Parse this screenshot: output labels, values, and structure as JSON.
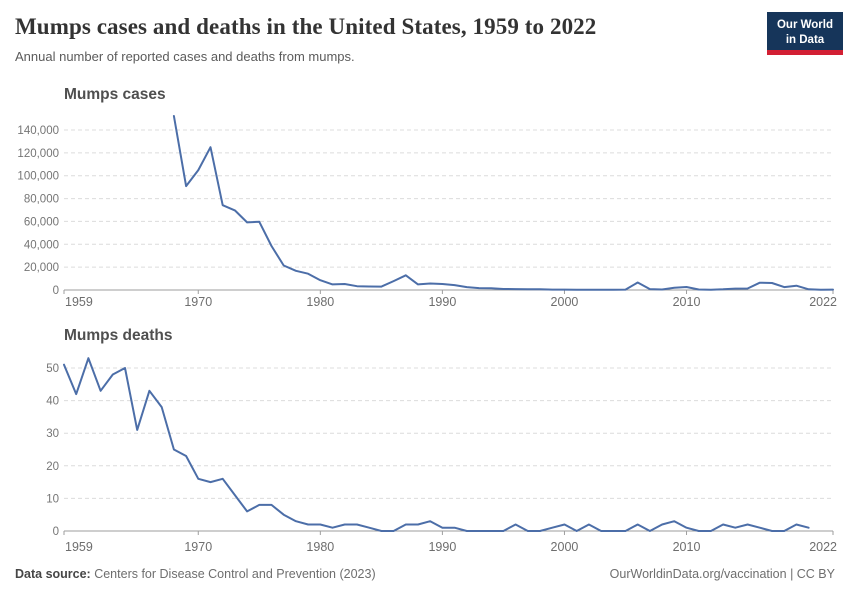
{
  "header": {
    "title": "Mumps cases and deaths in the United States, 1959 to 2022",
    "subtitle": "Annual number of reported cases and deaths from mumps.",
    "logo": {
      "line1": "Our World",
      "line2": "in Data"
    }
  },
  "footer": {
    "source_label": "Data source:",
    "source_value": " Centers for Disease Control and Prevention (2023)",
    "credit": "OurWorldinData.org/vaccination | CC BY"
  },
  "colors": {
    "line": "#4C6EA8",
    "logo_bg": "#16355a",
    "logo_red": "#d21f33",
    "grid": "#dcdcdc",
    "axis": "#9e9e9e"
  },
  "chart_data": [
    {
      "type": "line",
      "title": "Mumps cases",
      "xlabel": "",
      "ylabel": "",
      "grid": "dashed horizontal",
      "legend": "none",
      "xlim": [
        1959,
        2022
      ],
      "ylim": [
        0,
        152209
      ],
      "xticks": [
        1959,
        1970,
        1980,
        1990,
        2000,
        2010,
        2022
      ],
      "xtick_labels": [
        "1959",
        "1970",
        "1980",
        "1990",
        "2000",
        "2010",
        "2022"
      ],
      "yticks": [
        0,
        20000,
        40000,
        60000,
        80000,
        100000,
        120000,
        140000
      ],
      "ytick_labels": [
        "0",
        "20,000",
        "40,000",
        "60,000",
        "80,000",
        "100,000",
        "120,000",
        "140,000"
      ],
      "series": [
        {
          "name": "Mumps cases",
          "start_year": 1968,
          "values": [
            152209,
            90918,
            104953,
            124939,
            74215,
            69612,
            59128,
            59647,
            38492,
            21436,
            16817,
            14225,
            8576,
            4941,
            5270,
            3355,
            3021,
            2982,
            7790,
            12848,
            4866,
            5712,
            5292,
            4264,
            2572,
            1692,
            1537,
            906,
            751,
            683,
            666,
            387,
            338,
            266,
            270,
            231,
            258,
            314,
            6584,
            800,
            454,
            1991,
            2612,
            404,
            229,
            584,
            1223,
            1329,
            6369,
            6109,
            2515,
            3780,
            616,
            139,
            322
          ]
        }
      ]
    },
    {
      "type": "line",
      "title": "Mumps deaths",
      "xlabel": "",
      "ylabel": "",
      "grid": "dashed horizontal",
      "legend": "none",
      "xlim": [
        1959,
        2022
      ],
      "ylim": [
        0,
        53
      ],
      "xticks": [
        1959,
        1970,
        1980,
        1990,
        2000,
        2010,
        2022
      ],
      "xtick_labels": [
        "1959",
        "1970",
        "1980",
        "1990",
        "2000",
        "2010",
        "2022"
      ],
      "yticks": [
        0,
        10,
        20,
        30,
        40,
        50
      ],
      "ytick_labels": [
        "0",
        "10",
        "20",
        "30",
        "40",
        "50"
      ],
      "series": [
        {
          "name": "Mumps deaths",
          "start_year": 1959,
          "values": [
            51,
            42,
            53,
            43,
            48,
            50,
            31,
            43,
            38,
            25,
            23,
            16,
            15,
            16,
            11,
            6,
            8,
            8,
            5,
            3,
            2,
            2,
            1,
            2,
            2,
            1,
            0,
            0,
            2,
            2,
            3,
            1,
            1,
            0,
            0,
            0,
            0,
            2,
            0,
            0,
            1,
            2,
            0,
            2,
            0,
            0,
            0,
            2,
            0,
            2,
            3,
            1,
            0,
            0,
            2,
            1,
            2,
            1,
            0,
            0,
            2,
            1
          ]
        }
      ]
    }
  ]
}
